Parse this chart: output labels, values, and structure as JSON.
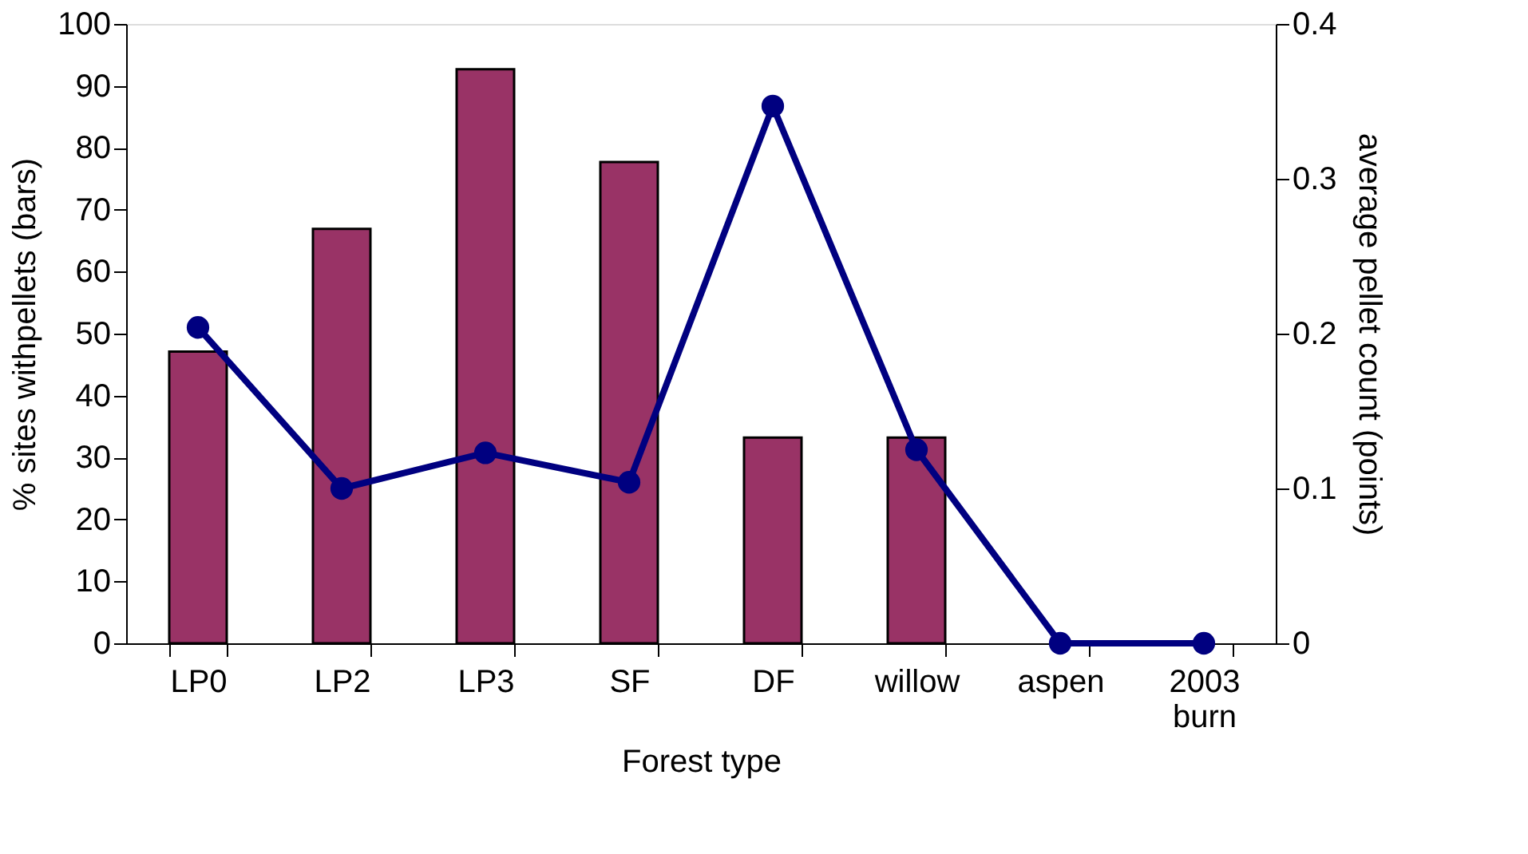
{
  "chart_data": {
    "type": "bar",
    "xlabel": "Forest type",
    "ylabel": "% sites withpellets (bars)",
    "y2label": "average pellet count (points)",
    "categories": [
      "LP0",
      "LP2",
      "LP3",
      "SF",
      "DF",
      "willow",
      "aspen",
      "2003 burn"
    ],
    "series": [
      {
        "color": "#993366",
        "values": [
          47.1,
          66.9,
          92.7,
          77.7,
          33.2,
          33.2,
          0,
          0
        ]
      },
      {
        "type": "line",
        "axis": "y2",
        "color": "#000080",
        "marker": "circle",
        "line_style": "solid",
        "values": [
          0.204,
          0.1,
          0.123,
          0.104,
          0.347,
          0.125,
          0,
          0
        ]
      }
    ],
    "ylim": [
      0,
      100
    ],
    "yticks": [
      0,
      10,
      20,
      30,
      40,
      50,
      60,
      70,
      80,
      90,
      100
    ],
    "y2lim": [
      0,
      0.4
    ],
    "y2ticks": [
      0,
      0.1,
      0.2,
      0.3,
      0.4
    ],
    "grid": false
  }
}
